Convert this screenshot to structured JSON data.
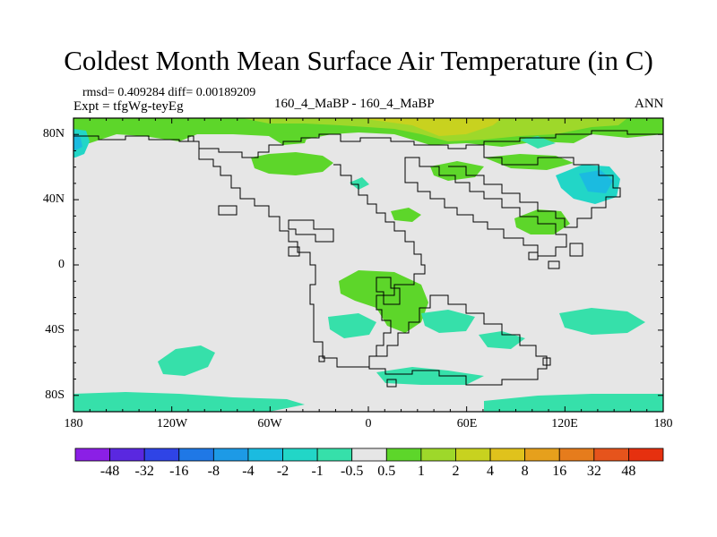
{
  "title": "Coldest Month Mean Surface Air Temperature (in C)",
  "stats": "rmsd= 0.409284 diff= 0.00189209",
  "experiment": "Expt = tfgWg-teyEg",
  "center_label": "160_4_MaBP - 160_4_MaBP",
  "season": "ANN",
  "lat_labels": [
    "80N",
    "40N",
    "0",
    "40S",
    "80S"
  ],
  "lon_labels": [
    "180",
    "120W",
    "60W",
    "0",
    "60E",
    "120E",
    "180"
  ],
  "colorbar": {
    "colors": [
      "#8b1fe6",
      "#5a28e0",
      "#2f44e6",
      "#1f78e6",
      "#1d9ae6",
      "#1bbbe0",
      "#22d6c7",
      "#36e0aa",
      "#e6e6e6",
      "#5dd62a",
      "#9ed82a",
      "#c8d21f",
      "#e0c21c",
      "#e6a01c",
      "#e67c1c",
      "#e6541c",
      "#e6300f"
    ],
    "labels": [
      "-48",
      "-32",
      "-16",
      "-8",
      "-4",
      "-2",
      "-1",
      "-0.5",
      "0.5",
      "1",
      "2",
      "4",
      "8",
      "16",
      "32",
      "48"
    ]
  },
  "colors": {
    "ocean_background": "#e6e6e6",
    "warm_light": "#5dd62a",
    "warm_mid": "#9ed82a",
    "warm_strong": "#c8d21f",
    "cool_light": "#36e0aa",
    "cool_mid": "#22d6c7",
    "cool_strong": "#1bbbe0",
    "coastline": "#000000"
  }
}
